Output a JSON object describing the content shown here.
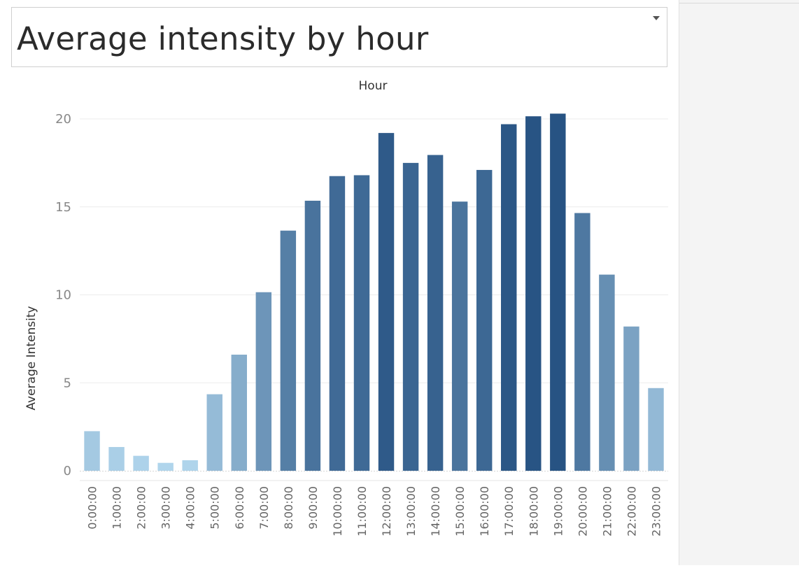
{
  "title": "Average intensity by hour",
  "chart_data": {
    "type": "bar",
    "header": "Hour",
    "ylabel": "Average Intensity",
    "xlabel": "",
    "ylim": [
      0,
      21
    ],
    "yticks": [
      0,
      5,
      10,
      15,
      20
    ],
    "grid": true,
    "colors": {
      "light": "#b0d5ec",
      "dark": "#275383"
    },
    "categories": [
      "0:00:00",
      "1:00:00",
      "2:00:00",
      "3:00:00",
      "4:00:00",
      "5:00:00",
      "6:00:00",
      "7:00:00",
      "8:00:00",
      "9:00:00",
      "10:00:00",
      "11:00:00",
      "12:00:00",
      "13:00:00",
      "14:00:00",
      "15:00:00",
      "16:00:00",
      "17:00:00",
      "18:00:00",
      "19:00:00",
      "20:00:00",
      "21:00:00",
      "22:00:00",
      "23:00:00"
    ],
    "values": [
      2.25,
      1.35,
      0.85,
      0.45,
      0.6,
      4.35,
      6.6,
      10.15,
      13.65,
      15.35,
      16.75,
      16.8,
      19.2,
      17.5,
      17.95,
      15.3,
      17.1,
      19.7,
      20.15,
      20.3,
      14.65,
      11.15,
      8.2,
      4.7
    ]
  }
}
